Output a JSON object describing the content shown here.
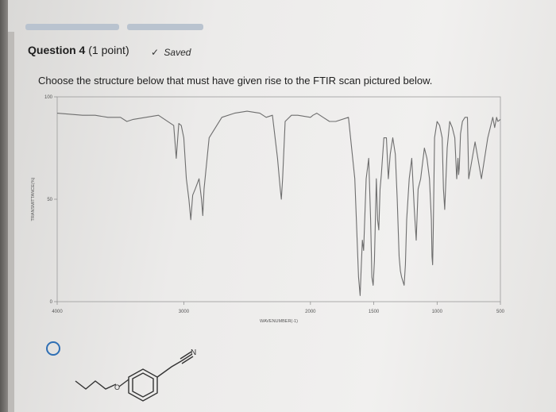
{
  "question": {
    "title": "Question 4",
    "points": "(1 point)",
    "status_label": "Saved",
    "prompt": "Choose the structure below that must have given rise to the FTIR scan pictured below."
  },
  "chart_data": {
    "type": "line",
    "xlabel": "WAVENUMBER(-1)",
    "ylabel": "TRANSMITTANCE(%)",
    "xlim": [
      4000,
      500
    ],
    "ylim": [
      0,
      100
    ],
    "x_ticks": [
      4000,
      3000,
      2000,
      1500,
      1000,
      500
    ],
    "x_tick_labels": [
      "4000",
      "3000",
      "2000",
      "1500",
      "1000",
      "500"
    ],
    "y_ticks": [
      0,
      50,
      100
    ],
    "y_tick_labels": [
      "0",
      "50",
      "100"
    ],
    "series": [
      {
        "x": [
          4000,
          3800,
          3700,
          3600,
          3500,
          3450,
          3400,
          3300,
          3200,
          3080,
          3060,
          3040,
          3020,
          3000,
          2980,
          2960,
          2945,
          2930,
          2910,
          2880,
          2860,
          2850,
          2840,
          2800,
          2700,
          2600,
          2500,
          2400,
          2350,
          2300,
          2260,
          2240,
          2230,
          2220,
          2200,
          2150,
          2100,
          2000,
          1980,
          1950,
          1900,
          1850,
          1800,
          1700,
          1650,
          1620,
          1608,
          1600,
          1590,
          1580,
          1560,
          1540,
          1525,
          1515,
          1505,
          1495,
          1480,
          1470,
          1460,
          1450,
          1440,
          1420,
          1400,
          1385,
          1370,
          1350,
          1330,
          1315,
          1300,
          1290,
          1280,
          1270,
          1260,
          1250,
          1240,
          1220,
          1200,
          1180,
          1175,
          1165,
          1150,
          1130,
          1100,
          1080,
          1060,
          1045,
          1040,
          1035,
          1030,
          1020,
          1000,
          980,
          960,
          950,
          940,
          920,
          900,
          880,
          860,
          845,
          835,
          830,
          825,
          815,
          800,
          780,
          760,
          750,
          700,
          650,
          600,
          560,
          545,
          530,
          520,
          500
        ],
        "y": [
          92,
          91,
          91,
          90,
          90,
          88,
          89,
          90,
          91,
          86,
          70,
          87,
          86,
          80,
          60,
          50,
          40,
          52,
          55,
          60,
          50,
          42,
          55,
          80,
          90,
          92,
          93,
          92,
          90,
          91,
          70,
          56,
          50,
          60,
          88,
          91,
          91,
          90,
          91,
          92,
          90,
          88,
          88,
          90,
          60,
          12,
          3,
          15,
          30,
          25,
          60,
          70,
          40,
          12,
          8,
          20,
          60,
          40,
          35,
          55,
          62,
          80,
          80,
          60,
          72,
          80,
          72,
          50,
          22,
          15,
          12,
          10,
          8,
          18,
          40,
          60,
          70,
          45,
          40,
          30,
          55,
          60,
          75,
          70,
          60,
          40,
          22,
          18,
          35,
          80,
          88,
          86,
          80,
          55,
          45,
          75,
          88,
          85,
          80,
          60,
          70,
          62,
          65,
          82,
          88,
          90,
          90,
          60,
          78,
          60,
          80,
          90,
          85,
          90,
          88,
          89
        ]
      }
    ]
  },
  "answer_option": {
    "atom_label": "N"
  },
  "colors": {
    "accent": "#2f6fb4",
    "trace": "#6e6e6e"
  }
}
